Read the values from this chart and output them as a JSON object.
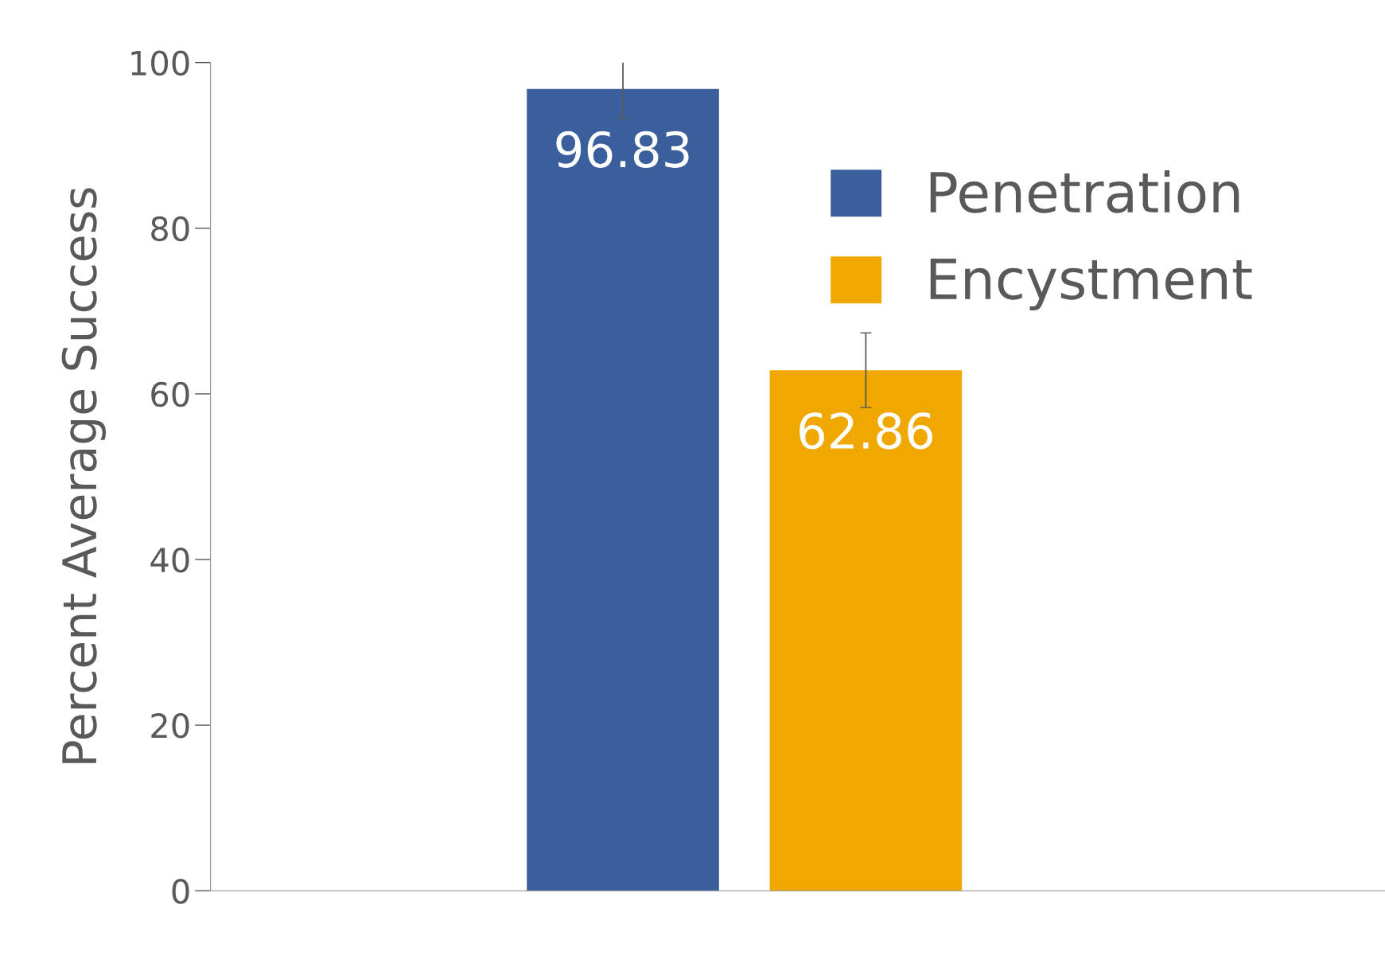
{
  "chart_data": {
    "type": "bar",
    "ylabel": "Percent Average Success",
    "categories": [
      null
    ],
    "series": [
      {
        "name": "Penetration",
        "color": "#3a5f9c",
        "values": [
          96.83
        ],
        "errors": [
          3.6
        ]
      },
      {
        "name": "Encystment",
        "color": "#f0a800",
        "values": [
          62.86
        ],
        "errors": [
          4.5
        ]
      }
    ],
    "ylim": [
      0,
      100
    ],
    "yticks": [
      0,
      20,
      40,
      60,
      80,
      100
    ],
    "grid": false,
    "legend": "top right",
    "data_labels": true
  }
}
